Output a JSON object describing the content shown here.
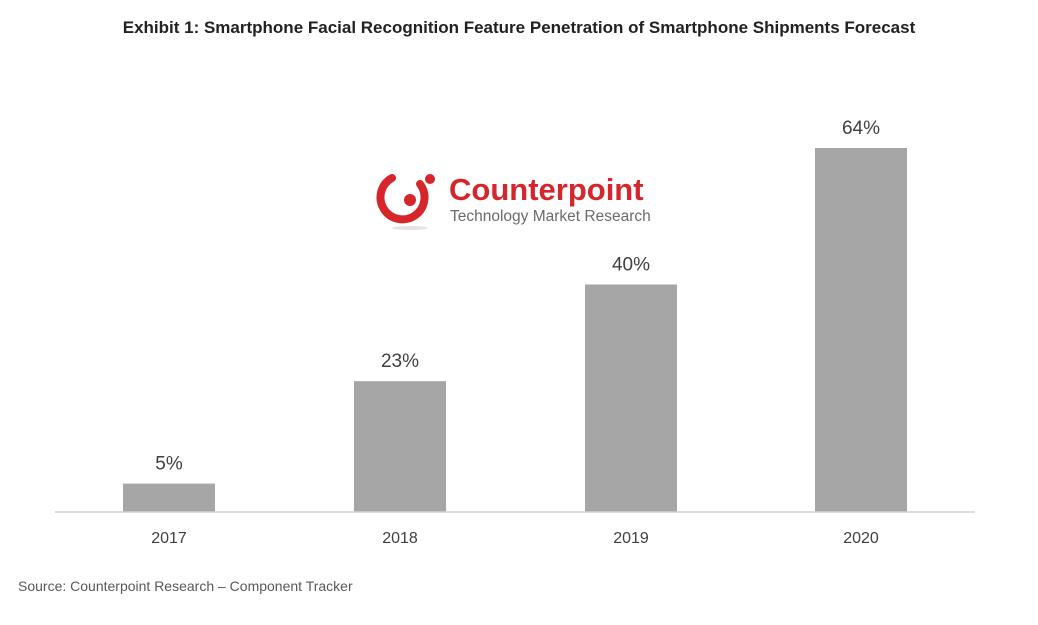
{
  "chart_data": {
    "type": "bar",
    "title": "Exhibit 1: Smartphone Facial Recognition Feature Penetration of Smartphone Shipments Forecast",
    "categories": [
      "2017",
      "2018",
      "2019",
      "2020"
    ],
    "values": [
      5,
      23,
      40,
      64
    ],
    "value_labels": [
      "5%",
      "23%",
      "40%",
      "64%"
    ],
    "unit": "%",
    "ylim": [
      0,
      64
    ],
    "grid": false,
    "legend": "none",
    "colors": {
      "bar": "#a6a6a6",
      "axis": "#d0d0d0",
      "label": "#404040"
    }
  },
  "logo": {
    "name": "Counterpoint",
    "tagline": "Technology Market Research",
    "colors": {
      "brand_red": "#d7262b",
      "tagline_gray": "#6b6b6b"
    }
  },
  "source": "Source: Counterpoint Research – Component Tracker"
}
